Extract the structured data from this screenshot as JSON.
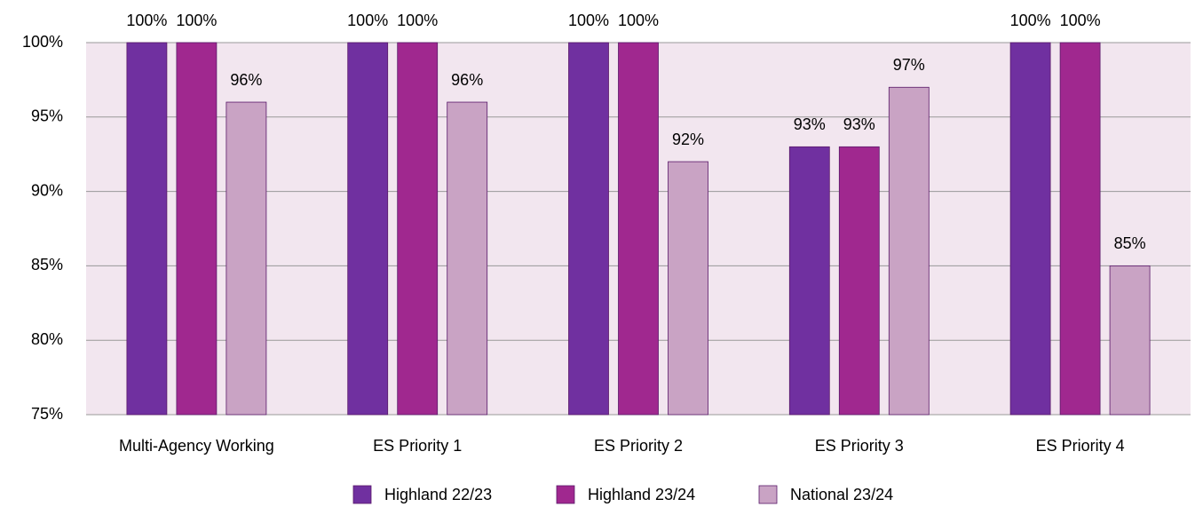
{
  "chart_data": {
    "type": "bar",
    "categories": [
      "Multi-Agency Working",
      "ES Priority 1",
      "ES Priority 2",
      "ES Priority 3",
      "ES Priority 4"
    ],
    "series": [
      {
        "name": "Highland 22/23",
        "color": "#7030a0",
        "values": [
          100,
          100,
          100,
          93,
          100
        ],
        "value_labels": [
          "100%",
          "100%",
          "100%",
          "93%",
          "100%"
        ]
      },
      {
        "name": "Highland 23/24",
        "color": "#a0288f",
        "values": [
          100,
          100,
          100,
          93,
          100
        ],
        "value_labels": [
          "100%",
          "100%",
          "100%",
          "93%",
          "100%"
        ]
      },
      {
        "name": "National 23/24",
        "color": "#c9a3c4",
        "values": [
          96,
          96,
          92,
          97,
          85
        ],
        "value_labels": [
          "96%",
          "96%",
          "92%",
          "97%",
          "85%"
        ]
      }
    ],
    "ylim": [
      75,
      100
    ],
    "yticks": [
      {
        "value": 75,
        "label": "75%"
      },
      {
        "value": 80,
        "label": "80%"
      },
      {
        "value": 85,
        "label": "85%"
      },
      {
        "value": 90,
        "label": "90%"
      },
      {
        "value": 95,
        "label": "95%"
      },
      {
        "value": 100,
        "label": "100%"
      }
    ],
    "grid": true,
    "legend": "bottom"
  }
}
